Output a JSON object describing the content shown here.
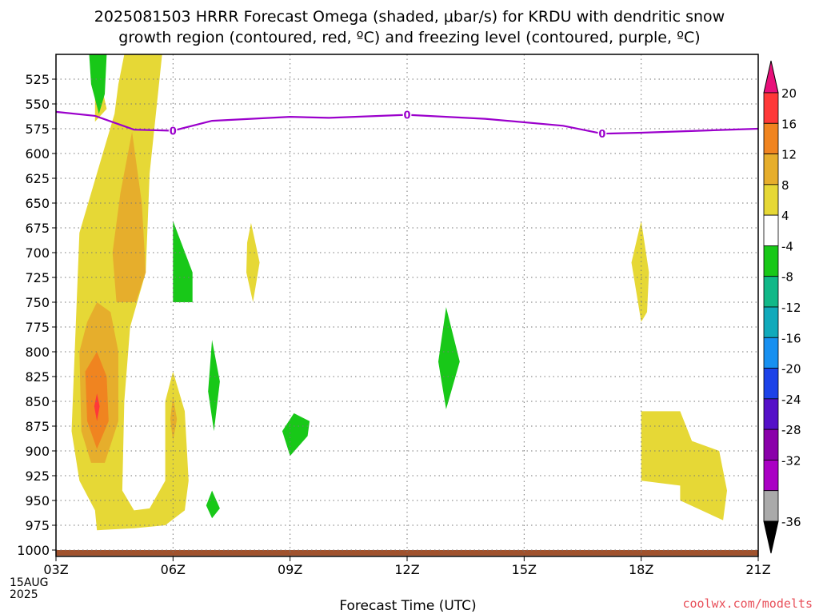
{
  "title": "2025081503 HRRR Forecast Omega (shaded, μbar/s) for KRDU with dendritic snow\ngrowth region (contoured, red, ºC) and freezing level (contoured, purple, ºC)",
  "credit": "coolwx.com/modelts",
  "date_label": "15AUG\n2025",
  "colors": {
    "freezing_line": "#9b00cc",
    "ground": "#a0522d",
    "grid": "#777777"
  },
  "chart_data": {
    "type": "heatmap",
    "xlabel": "Forecast Time (UTC)",
    "x_ticks": [
      "03Z",
      "06Z",
      "09Z",
      "12Z",
      "15Z",
      "18Z",
      "21Z"
    ],
    "x_range_hours": [
      3,
      21
    ],
    "y_ticks": [
      525,
      550,
      575,
      600,
      625,
      650,
      675,
      700,
      725,
      750,
      775,
      800,
      825,
      850,
      875,
      900,
      925,
      950,
      975,
      1000
    ],
    "y_range_mb": [
      500,
      1000
    ],
    "grid": true,
    "colorbar": {
      "labels": [
        "20",
        "16",
        "12",
        "8",
        "4",
        "-4",
        "-8",
        "-12",
        "-16",
        "-20",
        "-24",
        "-28",
        "-32",
        "-36"
      ],
      "colors": [
        "#e8107a",
        "#ff3838",
        "#f08420",
        "#e6ae2c",
        "#e6d836",
        "#ffffff",
        "#18c818",
        "#11b888",
        "#11aabb",
        "#1890f0",
        "#1c42e8",
        "#5510c8",
        "#8a00aa",
        "#aa00c4",
        "#aaaaaa",
        "#000000"
      ]
    },
    "freezing_level": {
      "label": "0",
      "points": [
        [
          3,
          558
        ],
        [
          4,
          562
        ],
        [
          5,
          576
        ],
        [
          6,
          577
        ],
        [
          7,
          567
        ],
        [
          9,
          563
        ],
        [
          10,
          564
        ],
        [
          12,
          561
        ],
        [
          14,
          565
        ],
        [
          16,
          572
        ],
        [
          17,
          580
        ],
        [
          18,
          579
        ],
        [
          21,
          575
        ]
      ],
      "label_points": [
        [
          6,
          577
        ],
        [
          12,
          561
        ],
        [
          17,
          580
        ]
      ]
    },
    "omega_regions": [
      {
        "level": "4",
        "pts": [
          [
            4.0,
            500
          ],
          [
            4.1,
            520
          ],
          [
            4.3,
            555
          ],
          [
            4.0,
            568
          ]
        ]
      },
      {
        "level": "4",
        "pts": [
          [
            4.75,
            500
          ],
          [
            5.72,
            500
          ],
          [
            5.4,
            620
          ],
          [
            5.3,
            720
          ],
          [
            4.9,
            775
          ],
          [
            4.75,
            850
          ],
          [
            4.7,
            940
          ],
          [
            5.0,
            960
          ],
          [
            5.4,
            958
          ],
          [
            5.8,
            930
          ],
          [
            5.8,
            850
          ],
          [
            6.0,
            820
          ],
          [
            6.3,
            860
          ],
          [
            6.4,
            930
          ],
          [
            6.3,
            960
          ],
          [
            5.8,
            975
          ],
          [
            5.0,
            978
          ],
          [
            4.05,
            980
          ],
          [
            4.0,
            960
          ],
          [
            3.6,
            930
          ],
          [
            3.4,
            880
          ],
          [
            3.5,
            780
          ],
          [
            3.6,
            680
          ],
          [
            3.9,
            640
          ],
          [
            4.2,
            600
          ],
          [
            4.5,
            560
          ],
          [
            4.6,
            530
          ]
        ]
      },
      {
        "level": "8",
        "pts": [
          [
            4.95,
            578
          ],
          [
            5.2,
            650
          ],
          [
            5.3,
            720
          ],
          [
            5.05,
            750
          ],
          [
            4.55,
            750
          ],
          [
            4.45,
            700
          ],
          [
            4.65,
            640
          ]
        ]
      },
      {
        "level": "8",
        "pts": [
          [
            4.05,
            750
          ],
          [
            4.4,
            760
          ],
          [
            4.6,
            800
          ],
          [
            4.6,
            870
          ],
          [
            4.25,
            912
          ],
          [
            3.9,
            912
          ],
          [
            3.65,
            880
          ],
          [
            3.6,
            800
          ],
          [
            3.8,
            770
          ]
        ]
      },
      {
        "level": "12",
        "pts": [
          [
            4.05,
            800
          ],
          [
            4.3,
            825
          ],
          [
            4.35,
            870
          ],
          [
            4.05,
            898
          ],
          [
            3.8,
            870
          ],
          [
            3.75,
            820
          ]
        ]
      },
      {
        "level": "16",
        "pts": [
          [
            4.05,
            842
          ],
          [
            4.12,
            855
          ],
          [
            4.05,
            870
          ],
          [
            3.98,
            855
          ]
        ]
      },
      {
        "level": "8",
        "pts": [
          [
            6.0,
            845
          ],
          [
            6.1,
            868
          ],
          [
            6.0,
            890
          ],
          [
            5.93,
            868
          ]
        ]
      },
      {
        "level": "4",
        "pts": [
          [
            8.0,
            670
          ],
          [
            8.22,
            710
          ],
          [
            8.05,
            750
          ],
          [
            7.88,
            720
          ],
          [
            7.9,
            690
          ]
        ]
      },
      {
        "level": "4",
        "pts": [
          [
            18.0,
            668
          ],
          [
            18.2,
            720
          ],
          [
            18.15,
            760
          ],
          [
            18.0,
            770
          ],
          [
            17.75,
            710
          ]
        ]
      },
      {
        "level": "4",
        "pts": [
          [
            18.0,
            860
          ],
          [
            19.0,
            860
          ],
          [
            19.3,
            890
          ],
          [
            20.0,
            900
          ],
          [
            20.2,
            940
          ],
          [
            20.1,
            970
          ],
          [
            19.0,
            950
          ],
          [
            19.0,
            935
          ],
          [
            18.0,
            930
          ]
        ]
      },
      {
        "level": "-4",
        "pts": [
          [
            3.85,
            500
          ],
          [
            4.3,
            500
          ],
          [
            4.25,
            540
          ],
          [
            4.1,
            560
          ],
          [
            3.9,
            530
          ]
        ]
      },
      {
        "level": "-4",
        "pts": [
          [
            6.0,
            668
          ],
          [
            6.5,
            720
          ],
          [
            6.5,
            750
          ],
          [
            6.0,
            750
          ]
        ]
      },
      {
        "level": "-4",
        "pts": [
          [
            7.0,
            788
          ],
          [
            7.2,
            830
          ],
          [
            7.05,
            880
          ],
          [
            6.9,
            840
          ]
        ]
      },
      {
        "level": "-4",
        "pts": [
          [
            7.0,
            940
          ],
          [
            7.2,
            958
          ],
          [
            7.0,
            968
          ],
          [
            6.85,
            955
          ]
        ]
      },
      {
        "level": "-4",
        "pts": [
          [
            9.1,
            862
          ],
          [
            9.5,
            870
          ],
          [
            9.45,
            885
          ],
          [
            9.0,
            905
          ],
          [
            8.8,
            880
          ]
        ]
      },
      {
        "level": "-4",
        "pts": [
          [
            13.0,
            755
          ],
          [
            13.35,
            810
          ],
          [
            13.0,
            858
          ],
          [
            12.8,
            810
          ]
        ]
      }
    ]
  }
}
